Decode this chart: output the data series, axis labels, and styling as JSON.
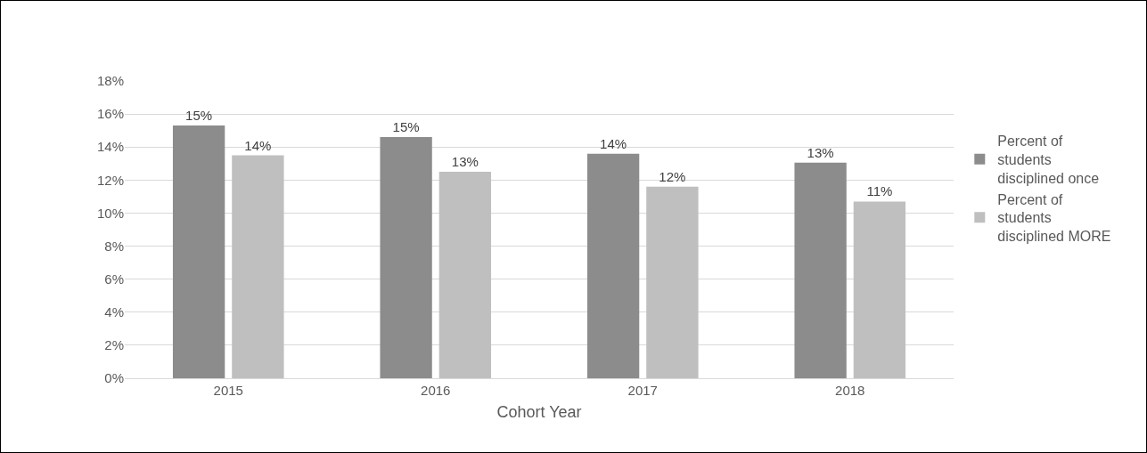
{
  "chart_data": {
    "type": "bar",
    "xlabel": "Cohort Year",
    "categories": [
      "2015",
      "2016",
      "2017",
      "2018"
    ],
    "series": [
      {
        "name": "Percent of students disciplined once",
        "color": "#8c8c8c",
        "values": [
          15.3,
          14.6,
          13.6,
          13.05
        ],
        "value_labels": [
          "15%",
          "15%",
          "14%",
          "13%"
        ]
      },
      {
        "name": "Percent of students disciplined MORE",
        "color": "#bfbfbf",
        "values": [
          13.5,
          12.5,
          11.6,
          10.7
        ],
        "value_labels": [
          "14%",
          "13%",
          "12%",
          "11%"
        ]
      }
    ],
    "ylim": [
      0,
      18
    ],
    "yticks": [
      {
        "value": 0,
        "label": "0%"
      },
      {
        "value": 2,
        "label": "2%"
      },
      {
        "value": 4,
        "label": "4%"
      },
      {
        "value": 6,
        "label": "6%"
      },
      {
        "value": 8,
        "label": "8%"
      },
      {
        "value": 10,
        "label": "10%"
      },
      {
        "value": 12,
        "label": "12%"
      },
      {
        "value": 14,
        "label": "14%"
      },
      {
        "value": 16,
        "label": "16%"
      },
      {
        "value": 18,
        "label": "18%"
      }
    ],
    "grid": "y",
    "legend": "right"
  }
}
